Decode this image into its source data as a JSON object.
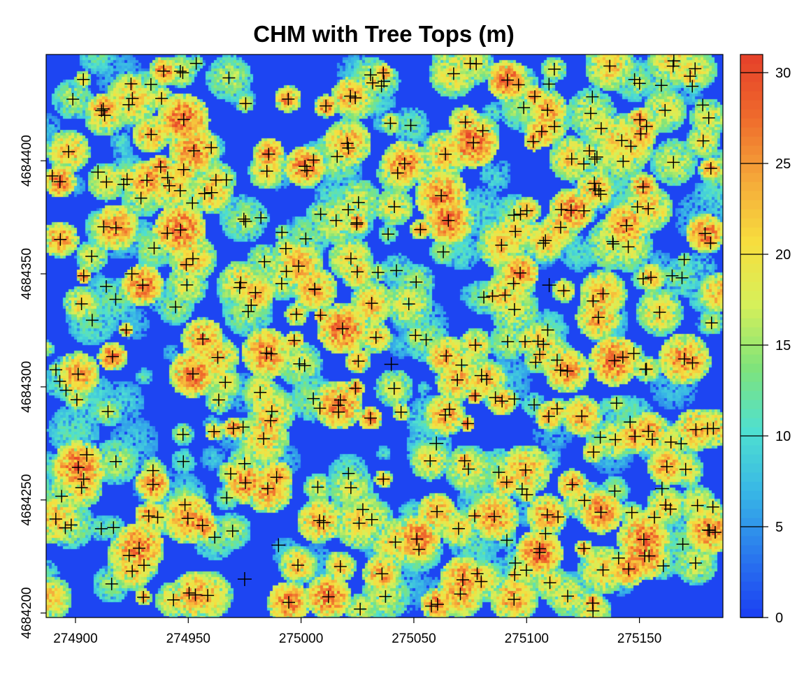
{
  "chart_data": {
    "type": "heatmap",
    "title": "CHM with Tree Tops (m)",
    "xlabel": "",
    "ylabel": "",
    "x_ticks": [
      274900,
      274950,
      275000,
      275050,
      275100,
      275150
    ],
    "x_tick_labels": [
      "274900",
      "274950",
      "275000",
      "275050",
      "275100",
      "275150"
    ],
    "y_ticks": [
      4684200,
      4684250,
      4684300,
      4684350,
      4684400
    ],
    "y_tick_labels": [
      "4684200",
      "4684250",
      "4684300",
      "4684350",
      "4684400"
    ],
    "xlim": [
      274887,
      275187
    ],
    "ylim": [
      4684198,
      4684447
    ],
    "colorbar": {
      "label": "",
      "ticks": [
        0,
        5,
        10,
        15,
        20,
        25,
        30
      ],
      "tick_labels": [
        "0",
        "5",
        "10",
        "15",
        "20",
        "25",
        "30"
      ],
      "range": [
        0,
        31
      ],
      "colors": [
        "#1b3ef2",
        "#2a78ee",
        "#38b6e6",
        "#4fe0d0",
        "#7fe37a",
        "#d6f05a",
        "#f7de3e",
        "#f5a93a",
        "#ef6a2c",
        "#e5402a"
      ]
    },
    "series": [
      {
        "marker": "+",
        "points": [
          [
            274925,
            4684350
          ],
          [
            274905,
            4684270
          ],
          [
            274990,
            4684230
          ],
          [
            275040,
            4684310
          ],
          [
            275080,
            4684305
          ],
          [
            275110,
            4684345
          ],
          [
            275130,
            4684390
          ],
          [
            275160,
            4684255
          ],
          [
            274975,
            4684215
          ],
          [
            275010,
            4684240
          ],
          [
            275060,
            4684275
          ],
          [
            274910,
            4684395
          ]
        ]
      }
    ]
  }
}
